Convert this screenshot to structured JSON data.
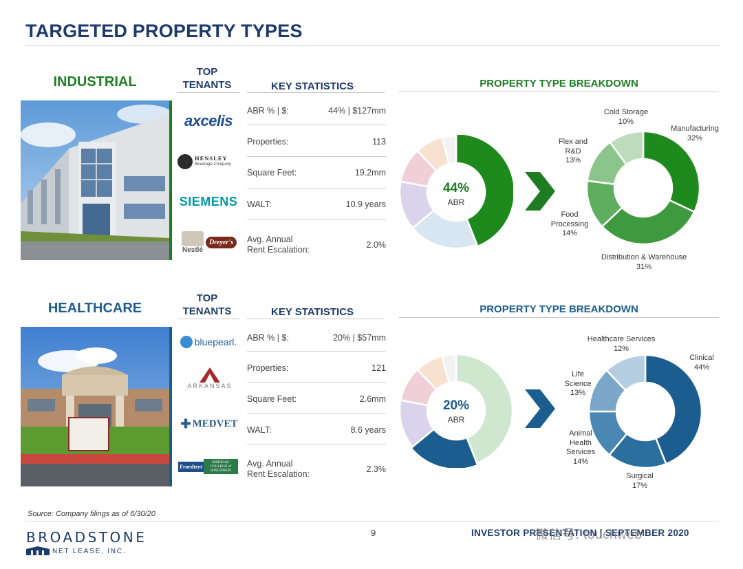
{
  "page": {
    "title": "TARGETED PROPERTY TYPES",
    "source": "Source: Company filings as of 6/30/20",
    "page_number": "9",
    "footer_text": "INVESTOR PRESENTATION | SEPTEMBER 2020",
    "watermark": "微信号: touchweb"
  },
  "brand": {
    "name": "BROADSTONE",
    "sub": "NET LEASE, INC."
  },
  "colors": {
    "title": "#1c3a6b",
    "industrial": "#1e7d23",
    "healthcare": "#1c5d8f"
  },
  "industrial": {
    "label": "INDUSTRIAL",
    "tenants_heading": "TOP\nTENANTS",
    "tenants_heading_top": "TOP",
    "tenants_heading_bottom": "TENANTS",
    "stats_heading": "KEY STATISTICS",
    "tenants": [
      "axcelis",
      "HENSLEY",
      "SIEMENS",
      "Nestlé",
      "Dreyer's"
    ],
    "tenant_sub": {
      "hensley": "Beverage Company"
    },
    "stats": [
      {
        "label": "ABR % | $:",
        "value": "44% | $127mm"
      },
      {
        "label": "Properties:",
        "value": "113"
      },
      {
        "label": "Square Feet:",
        "value": "19.2mm"
      },
      {
        "label": "WALT:",
        "value": "10.9 years"
      },
      {
        "label": "Avg. Annual",
        "label2": "Rent Escalation:",
        "value": "2.0%"
      }
    ],
    "breakdown_title": "PROPERTY TYPE BREAKDOWN",
    "abr_pct": "44%",
    "abr_label": "ABR"
  },
  "healthcare": {
    "label": "HEALTHCARE",
    "tenants_heading_top": "TOP",
    "tenants_heading_bottom": "TENANTS",
    "stats_heading": "KEY STATISTICS",
    "tenants": [
      "bluepearl.",
      "ARKANSAS",
      "MEDVET",
      "Froedtert",
      "MEDICAL COLLEGE of WISCONSIN"
    ],
    "stats": [
      {
        "label": "ABR % | $:",
        "value": "20% | $57mm"
      },
      {
        "label": "Properties:",
        "value": "121"
      },
      {
        "label": "Square Feet:",
        "value": "2.6mm"
      },
      {
        "label": "WALT:",
        "value": "8.6 years"
      },
      {
        "label": "Avg. Annual",
        "label2": "Rent Escalation:",
        "value": "2.3%"
      }
    ],
    "breakdown_title": "PROPERTY TYPE BREAKDOWN",
    "abr_pct": "20%",
    "abr_label": "ABR"
  },
  "chart_data": [
    {
      "type": "pie",
      "title": "",
      "categories": [
        "Industrial",
        "",
        "",
        "",
        "",
        ""
      ],
      "values": [
        44,
        20,
        14,
        10,
        8,
        4
      ],
      "center_text": "44% ABR",
      "highlighted": "Industrial"
    },
    {
      "type": "pie",
      "title": "PROPERTY TYPE BREAKDOWN",
      "categories": [
        "Manufacturing",
        "Distribution & Warehouse",
        "Food Processing",
        "Flex and R&D",
        "Cold Storage"
      ],
      "values": [
        32,
        31,
        14,
        13,
        10
      ]
    },
    {
      "type": "pie",
      "title": "",
      "categories": [
        "",
        "Healthcare",
        "",
        "",
        "",
        ""
      ],
      "values": [
        44,
        20,
        14,
        10,
        8,
        4
      ],
      "center_text": "20% ABR",
      "highlighted": "Healthcare"
    },
    {
      "type": "pie",
      "title": "PROPERTY TYPE BREAKDOWN",
      "categories": [
        "Clinical",
        "Surgical",
        "Animal Health Services",
        "Life Science",
        "Healthcare Services"
      ],
      "values": [
        44,
        17,
        14,
        13,
        12
      ]
    }
  ],
  "seg_labels": {
    "industrial": [
      {
        "name": "Cold Storage",
        "pct": "10%"
      },
      {
        "name": "Manufacturing",
        "pct": "32%"
      },
      {
        "name": "Flex and",
        "name2": "R&D",
        "pct": "13%"
      },
      {
        "name": "Food",
        "name2": "Processing",
        "pct": "14%"
      },
      {
        "name": "Distribution & Warehouse",
        "pct": "31%"
      }
    ],
    "healthcare": [
      {
        "name": "Healthcare Services",
        "pct": "12%"
      },
      {
        "name": "Clinical",
        "pct": "44%"
      },
      {
        "name": "Life",
        "name2": "Science",
        "pct": "13%"
      },
      {
        "name": "Animal",
        "name2": "Health",
        "name3": "Services",
        "pct": "14%"
      },
      {
        "name": "Surgical",
        "pct": "17%"
      }
    ]
  }
}
